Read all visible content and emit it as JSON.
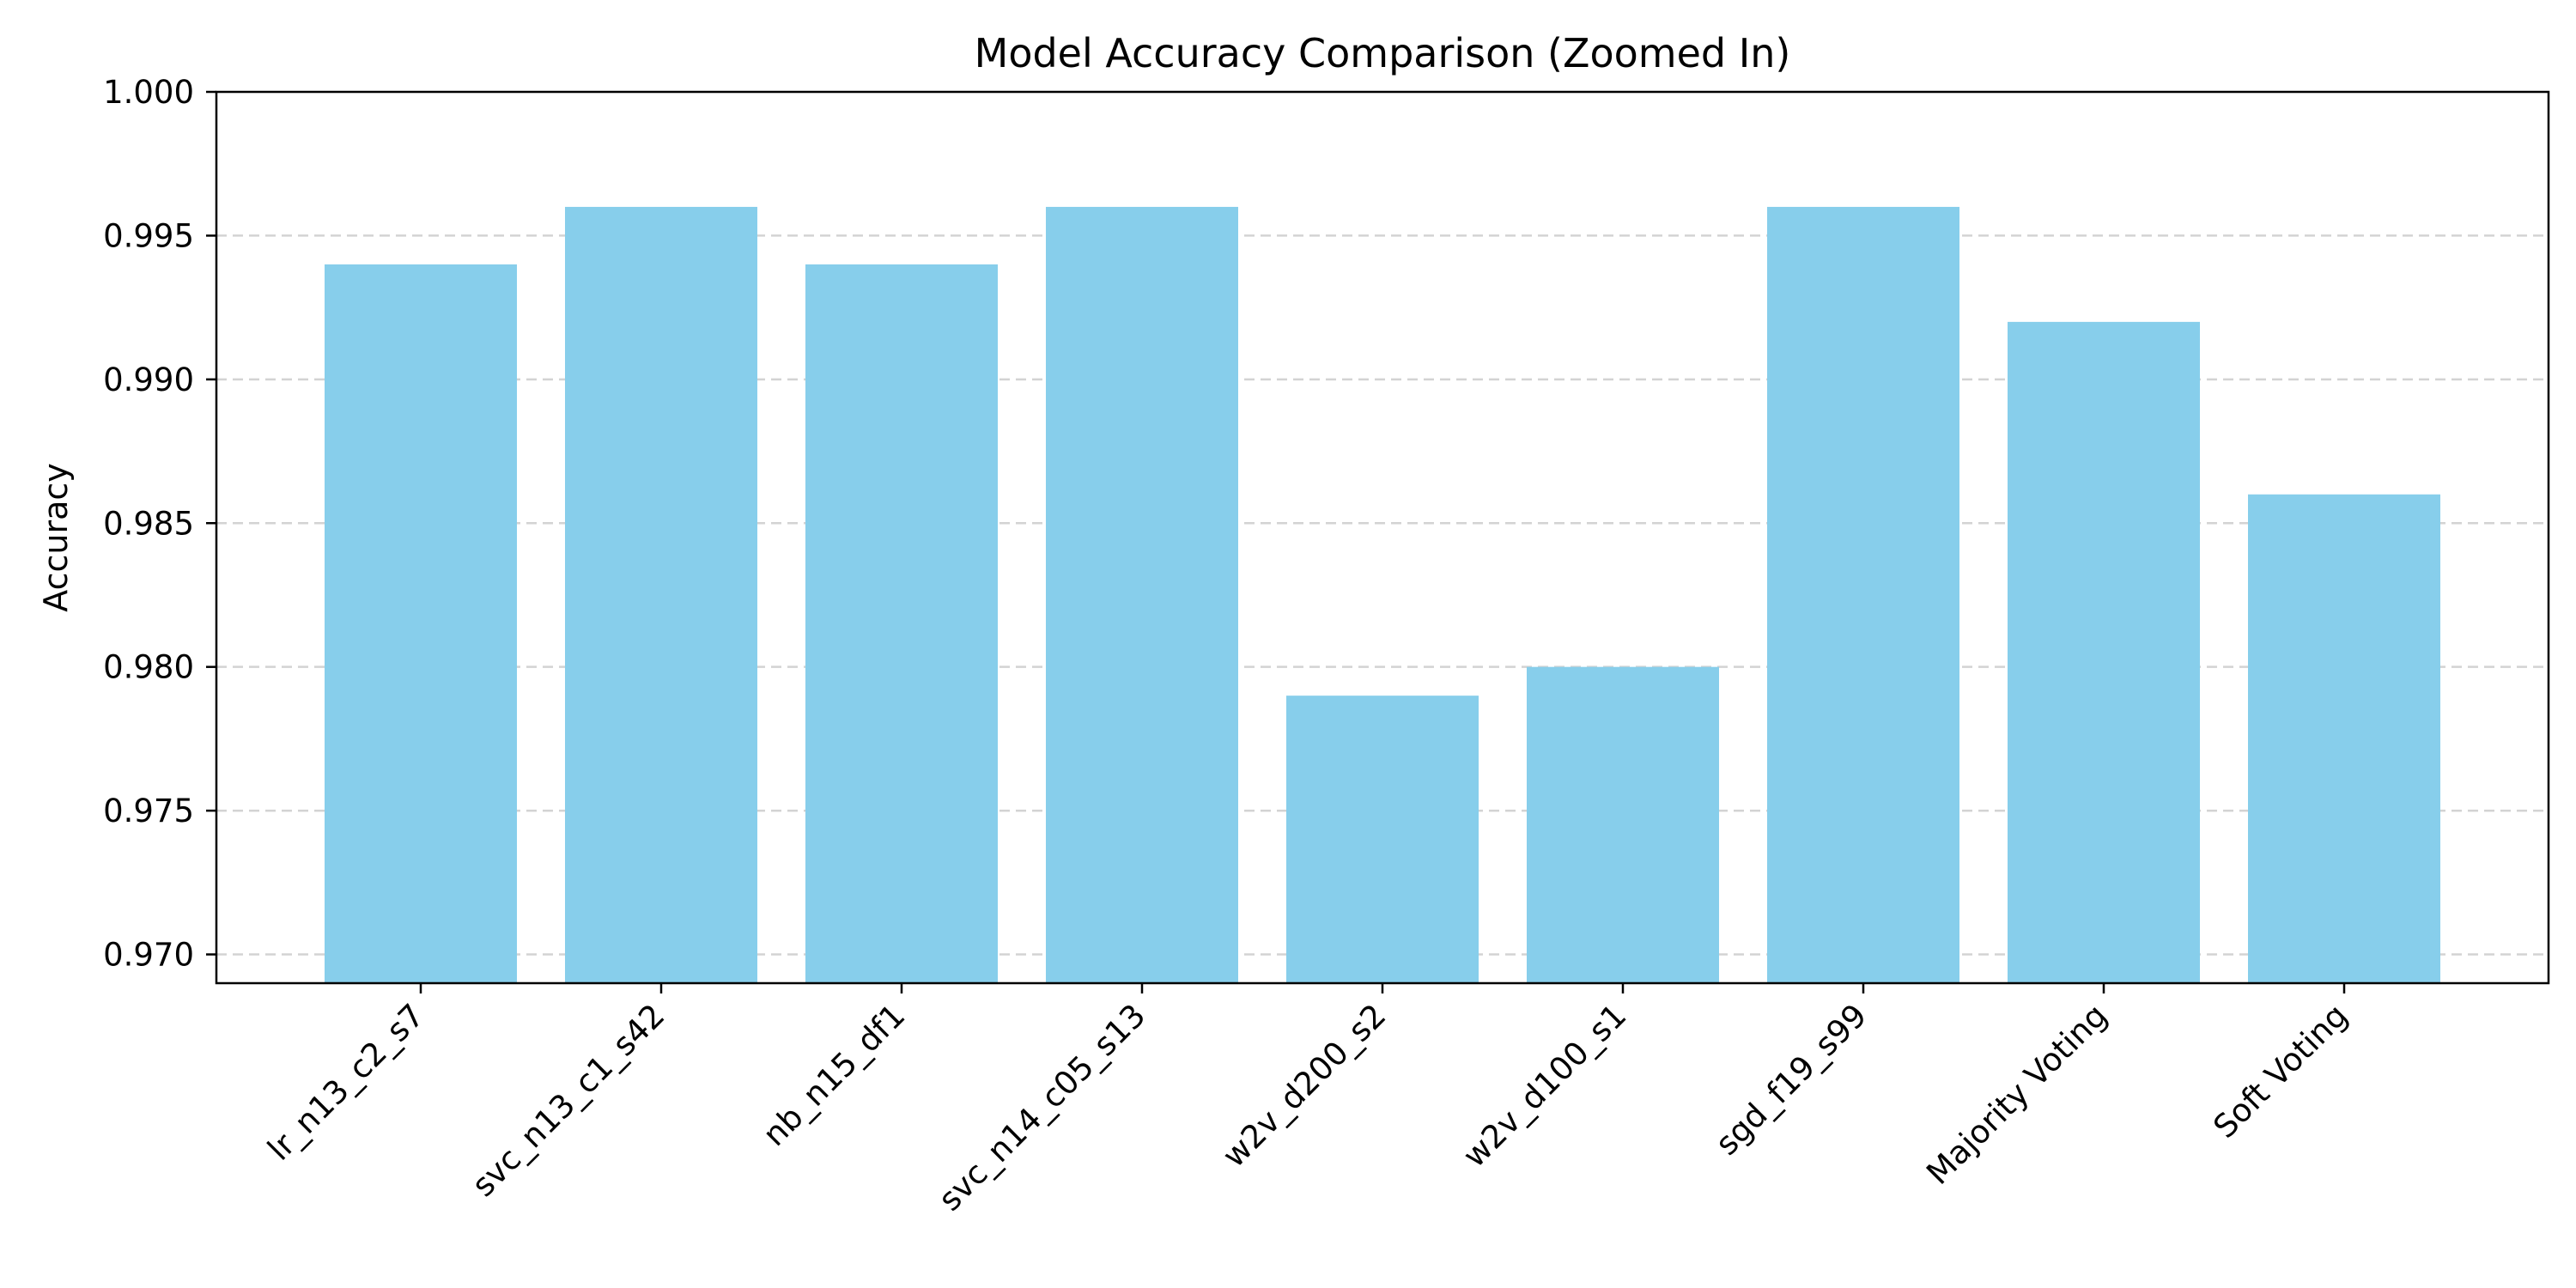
{
  "chart_data": {
    "type": "bar",
    "title": "Model Accuracy Comparison (Zoomed In)",
    "xlabel": "",
    "ylabel": "Accuracy",
    "categories": [
      "lr_n13_c2_s7",
      "svc_n13_c1_s42",
      "nb_n15_df1",
      "svc_n14_c05_s13",
      "w2v_d200_s2",
      "w2v_d100_s1",
      "sgd_f19_s99",
      "Majority Voting",
      "Soft Voting"
    ],
    "values": [
      0.994,
      0.996,
      0.994,
      0.996,
      0.979,
      0.98,
      0.996,
      0.992,
      0.986
    ],
    "ylim": [
      0.969,
      1.0
    ],
    "yticks": [
      "0.970",
      "0.975",
      "0.980",
      "0.985",
      "0.990",
      "0.995",
      "1.000"
    ],
    "grid": "y-dashed",
    "bar_color": "#87CEEB",
    "grid_color": "#d3d3d3"
  }
}
